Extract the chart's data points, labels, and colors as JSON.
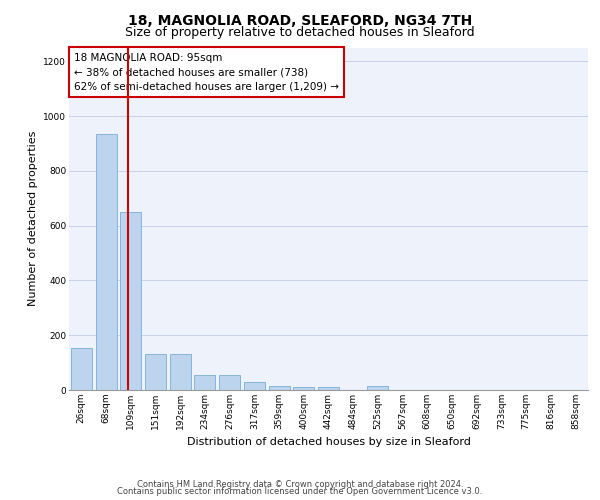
{
  "title1": "18, MAGNOLIA ROAD, SLEAFORD, NG34 7TH",
  "title2": "Size of property relative to detached houses in Sleaford",
  "xlabel": "Distribution of detached houses by size in Sleaford",
  "ylabel": "Number of detached properties",
  "footer1": "Contains HM Land Registry data © Crown copyright and database right 2024.",
  "footer2": "Contains public sector information licensed under the Open Government Licence v3.0.",
  "annotation_line1": "18 MAGNOLIA ROAD: 95sqm",
  "annotation_line2": "← 38% of detached houses are smaller (738)",
  "annotation_line3": "62% of semi-detached houses are larger (1,209) →",
  "bar_color": "#bdd4ee",
  "bar_edge_color": "#7aadd4",
  "vline_color": "#cc0000",
  "annotation_box_color": "#cc0000",
  "background_color": "#eef2fb",
  "categories": [
    "26sqm",
    "68sqm",
    "109sqm",
    "151sqm",
    "192sqm",
    "234sqm",
    "276sqm",
    "317sqm",
    "359sqm",
    "400sqm",
    "442sqm",
    "484sqm",
    "525sqm",
    "567sqm",
    "608sqm",
    "650sqm",
    "692sqm",
    "733sqm",
    "775sqm",
    "816sqm",
    "858sqm"
  ],
  "bar_heights": [
    155,
    935,
    650,
    130,
    130,
    55,
    55,
    28,
    15,
    10,
    10,
    0,
    15,
    0,
    0,
    0,
    0,
    0,
    0,
    0,
    0
  ],
  "ylim": [
    0,
    1250
  ],
  "yticks": [
    0,
    200,
    400,
    600,
    800,
    1000,
    1200
  ],
  "vline_x": 1.87,
  "grid_color": "#c8d0e8",
  "title1_fontsize": 10,
  "title2_fontsize": 9,
  "axis_label_fontsize": 8,
  "tick_fontsize": 6.5,
  "annotation_fontsize": 7.5,
  "footer_fontsize": 6
}
